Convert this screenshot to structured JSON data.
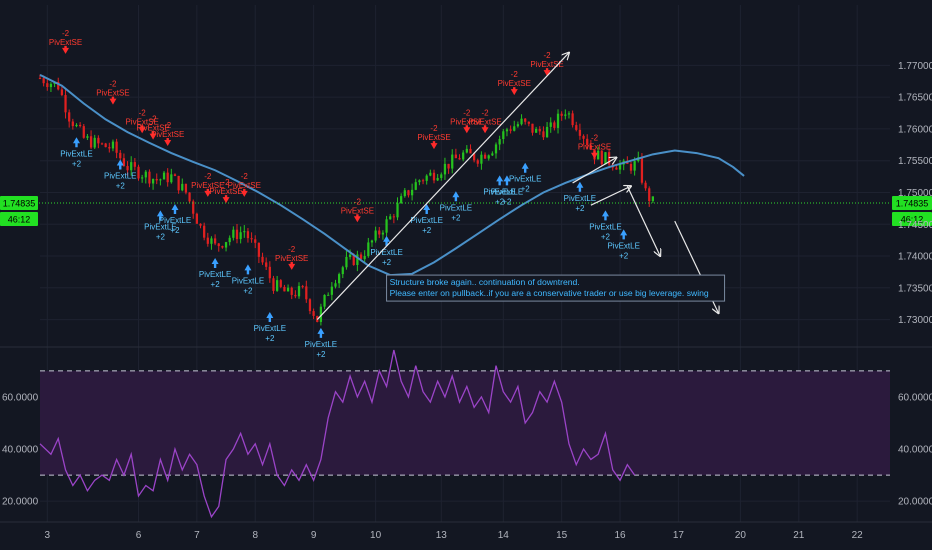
{
  "chart_data": {
    "type": "candlestick",
    "price_pane": {
      "y_ticks": [
        "1.77000",
        "1.76500",
        "1.76000",
        "1.75500",
        "1.75000",
        "1.74500",
        "1.74000",
        "1.73500",
        "1.73000"
      ],
      "ylim": [
        1.726,
        1.7795
      ],
      "current_price": "1.74835",
      "current_price_value": 1.74835,
      "countdown": "46:12",
      "colors": {
        "bull": "#26c21f",
        "bear": "#e02020",
        "ma": "#4a90c8",
        "price_line": "#2fd82f"
      },
      "moving_average": [
        [
          0,
          1.7685
        ],
        [
          6,
          1.7668
        ],
        [
          12,
          1.764
        ],
        [
          18,
          1.7615
        ],
        [
          24,
          1.7595
        ],
        [
          30,
          1.7578
        ],
        [
          36,
          1.7562
        ],
        [
          42,
          1.7548
        ],
        [
          48,
          1.7535
        ],
        [
          54,
          1.7518
        ],
        [
          60,
          1.75
        ],
        [
          66,
          1.748
        ],
        [
          72,
          1.7458
        ],
        [
          78,
          1.7435
        ],
        [
          84,
          1.741
        ],
        [
          90,
          1.7385
        ],
        [
          96,
          1.737
        ],
        [
          102,
          1.7372
        ],
        [
          108,
          1.739
        ],
        [
          114,
          1.7412
        ],
        [
          120,
          1.7435
        ],
        [
          126,
          1.7458
        ],
        [
          132,
          1.748
        ],
        [
          138,
          1.75
        ],
        [
          144,
          1.7515
        ],
        [
          150,
          1.7528
        ],
        [
          156,
          1.754
        ],
        [
          162,
          1.755
        ],
        [
          168,
          1.756
        ],
        [
          174,
          1.7566
        ],
        [
          180,
          1.7562
        ],
        [
          186,
          1.7554
        ],
        [
          190,
          1.754
        ],
        [
          193,
          1.7526
        ]
      ],
      "signals": [
        {
          "bar": 7,
          "side": "short",
          "label": "PivExtSE",
          "qty": "-2",
          "price": 1.7715
        },
        {
          "bar": 10,
          "side": "long",
          "label": "PivExtLE",
          "qty": "+2",
          "price": 1.759
        },
        {
          "bar": 20,
          "side": "short",
          "label": "PivExtSE",
          "qty": "-2",
          "price": 1.7635
        },
        {
          "bar": 22,
          "side": "long",
          "label": "PivExtLE",
          "qty": "+2",
          "price": 1.7555
        },
        {
          "bar": 28,
          "side": "short",
          "label": "PivExtSE",
          "qty": "-2",
          "price": 1.759
        },
        {
          "bar": 31,
          "side": "short",
          "label": "PivExtSE",
          "qty": "-2",
          "price": 1.758
        },
        {
          "bar": 33,
          "side": "long",
          "label": "PivExtLE",
          "qty": "+2",
          "price": 1.7475
        },
        {
          "bar": 35,
          "side": "short",
          "label": "PivExtSE",
          "qty": "-2",
          "price": 1.757
        },
        {
          "bar": 37,
          "side": "long",
          "label": "PivExtLE",
          "qty": "+2",
          "price": 1.7485
        },
        {
          "bar": 46,
          "side": "short",
          "label": "PivExtSE",
          "qty": "-2",
          "price": 1.749
        },
        {
          "bar": 48,
          "side": "long",
          "label": "PivExtLE",
          "qty": "+2",
          "price": 1.74
        },
        {
          "bar": 51,
          "side": "short",
          "label": "PivExtSE",
          "qty": "-2",
          "price": 1.748
        },
        {
          "bar": 56,
          "side": "short",
          "label": "PivExtSE",
          "qty": "-2",
          "price": 1.749
        },
        {
          "bar": 57,
          "side": "long",
          "label": "PivExtLE",
          "qty": "+2",
          "price": 1.739
        },
        {
          "bar": 63,
          "side": "long",
          "label": "PivExtLE",
          "qty": "+2",
          "price": 1.7315
        },
        {
          "bar": 69,
          "side": "short",
          "label": "PivExtSE",
          "qty": "-2",
          "price": 1.7375
        },
        {
          "bar": 77,
          "side": "long",
          "label": "PivExtLE",
          "qty": "+2",
          "price": 1.729
        },
        {
          "bar": 87,
          "side": "short",
          "label": "PivExtSE",
          "qty": "-2",
          "price": 1.745
        },
        {
          "bar": 95,
          "side": "long",
          "label": "PivExtLE",
          "qty": "+2",
          "price": 1.7435
        },
        {
          "bar": 108,
          "side": "short",
          "label": "PivExtSE",
          "qty": "-2",
          "price": 1.7565
        },
        {
          "bar": 106,
          "side": "long",
          "label": "PivExtLE",
          "qty": "+2",
          "price": 1.7485
        },
        {
          "bar": 114,
          "side": "long",
          "label": "PivExtLE",
          "qty": "+2",
          "price": 1.7505
        },
        {
          "bar": 117,
          "side": "short",
          "label": "PivExtSE",
          "qty": "-2",
          "price": 1.759
        },
        {
          "bar": 122,
          "side": "short",
          "label": "PivExtSE",
          "qty": "-2",
          "price": 1.759
        },
        {
          "bar": 126,
          "side": "long",
          "label": "PivExtLE",
          "qty": "+2",
          "price": 1.753
        },
        {
          "bar": 128,
          "side": "long",
          "label": "PivExtLE",
          "qty": "+2",
          "price": 1.753
        },
        {
          "bar": 130,
          "side": "short",
          "label": "PivExtSE",
          "qty": "-2",
          "price": 1.765
        },
        {
          "bar": 133,
          "side": "long",
          "label": "PivExtLE",
          "qty": "+2",
          "price": 1.755
        },
        {
          "bar": 139,
          "side": "short",
          "label": "PivExtSE",
          "qty": "-2",
          "price": 1.768
        },
        {
          "bar": 148,
          "side": "long",
          "label": "PivExtLE",
          "qty": "+2",
          "price": 1.752
        },
        {
          "bar": 152,
          "side": "short",
          "label": "PivExtSE",
          "qty": "-2",
          "price": 1.755
        },
        {
          "bar": 155,
          "side": "long",
          "label": "PivExtLE",
          "qty": "+2",
          "price": 1.7475
        },
        {
          "bar": 160,
          "side": "long",
          "label": "PivExtLE",
          "qty": "+2",
          "price": 1.7445
        }
      ],
      "trendlines": [
        {
          "from": [
            76,
            1.73
          ],
          "to": [
            145,
            1.772
          ],
          "color": "#e8e8e8",
          "arrow": true
        },
        {
          "from": [
            146,
            1.7515
          ],
          "to": [
            158,
            1.7555
          ],
          "color": "#e8e8e8",
          "arrow": true
        },
        {
          "from": [
            151,
            1.748
          ],
          "to": [
            162,
            1.751
          ],
          "color": "#e8e8e8",
          "arrow": true
        },
        {
          "from": [
            161,
            1.751
          ],
          "to": [
            170,
            1.74
          ],
          "color": "#e8e8e8",
          "arrow": true
        },
        {
          "from": [
            174,
            1.7455
          ],
          "to": [
            186,
            1.731
          ],
          "color": "#e8e8e8",
          "arrow": true
        }
      ],
      "note": {
        "lines": [
          "Structure broke again.. continuation of downtrend.",
          "Please enter on pullback..if you are a conservative trader or use big leverage. swing"
        ],
        "anchor_bar": 95,
        "anchor_price": 1.737
      }
    },
    "oscillator_pane": {
      "y_ticks": [
        "60.0000",
        "40.0000",
        "20.0000"
      ],
      "ylim": [
        12,
        78
      ],
      "upper_band": 70,
      "lower_band": 30,
      "color": "#9b44c8",
      "band_fill": "#2b1a3d",
      "values": [
        [
          0,
          42
        ],
        [
          3,
          38
        ],
        [
          5,
          44
        ],
        [
          7,
          32
        ],
        [
          9,
          26
        ],
        [
          11,
          30
        ],
        [
          13,
          24
        ],
        [
          15,
          28
        ],
        [
          17,
          30
        ],
        [
          19,
          28
        ],
        [
          21,
          36
        ],
        [
          23,
          30
        ],
        [
          25,
          38
        ],
        [
          27,
          22
        ],
        [
          29,
          26
        ],
        [
          31,
          24
        ],
        [
          33,
          36
        ],
        [
          35,
          28
        ],
        [
          37,
          40
        ],
        [
          39,
          32
        ],
        [
          41,
          38
        ],
        [
          43,
          34
        ],
        [
          45,
          22
        ],
        [
          47,
          14
        ],
        [
          49,
          18
        ],
        [
          51,
          36
        ],
        [
          53,
          40
        ],
        [
          55,
          46
        ],
        [
          57,
          38
        ],
        [
          59,
          42
        ],
        [
          61,
          34
        ],
        [
          63,
          42
        ],
        [
          65,
          30
        ],
        [
          67,
          26
        ],
        [
          69,
          32
        ],
        [
          71,
          28
        ],
        [
          73,
          34
        ],
        [
          75,
          28
        ],
        [
          77,
          36
        ],
        [
          79,
          52
        ],
        [
          81,
          62
        ],
        [
          83,
          58
        ],
        [
          85,
          68
        ],
        [
          87,
          60
        ],
        [
          89,
          66
        ],
        [
          91,
          58
        ],
        [
          93,
          70
        ],
        [
          95,
          64
        ],
        [
          97,
          78
        ],
        [
          99,
          66
        ],
        [
          101,
          60
        ],
        [
          103,
          72
        ],
        [
          105,
          62
        ],
        [
          107,
          58
        ],
        [
          109,
          66
        ],
        [
          111,
          60
        ],
        [
          113,
          68
        ],
        [
          115,
          58
        ],
        [
          117,
          64
        ],
        [
          119,
          56
        ],
        [
          121,
          60
        ],
        [
          123,
          54
        ],
        [
          125,
          72
        ],
        [
          127,
          62
        ],
        [
          129,
          58
        ],
        [
          131,
          64
        ],
        [
          133,
          50
        ],
        [
          135,
          54
        ],
        [
          137,
          62
        ],
        [
          139,
          58
        ],
        [
          141,
          66
        ],
        [
          143,
          58
        ],
        [
          145,
          42
        ],
        [
          147,
          34
        ],
        [
          149,
          40
        ],
        [
          151,
          36
        ],
        [
          153,
          38
        ],
        [
          155,
          46
        ],
        [
          157,
          32
        ],
        [
          159,
          28
        ],
        [
          161,
          34
        ],
        [
          163,
          30
        ]
      ]
    },
    "x_axis": {
      "tick_labels": [
        "3",
        "6",
        "7",
        "8",
        "9",
        "10",
        "13",
        "14",
        "15",
        "16",
        "17",
        "20",
        "21",
        "22"
      ],
      "tick_bars": [
        2,
        27,
        43,
        59,
        75,
        92,
        110,
        127,
        143,
        159,
        175,
        192,
        208,
        224
      ],
      "xlim": [
        0,
        233
      ]
    }
  }
}
